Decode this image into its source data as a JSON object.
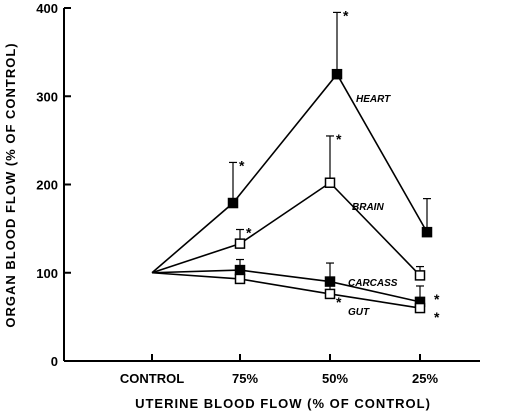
{
  "chart_data": {
    "type": "line",
    "xlabel": "UTERINE BLOOD FLOW (% OF CONTROL)",
    "ylabel": "ORGAN BLOOD FLOW (% OF CONTROL)",
    "categories": [
      "CONTROL",
      "75%",
      "50%",
      "25%"
    ],
    "ylim": [
      0,
      400
    ],
    "yticks": [
      0,
      100,
      200,
      300,
      400
    ],
    "grid": false,
    "legend": "inline labels beside each line",
    "series": [
      {
        "name": "HEART",
        "marker": "filled-square",
        "values": [
          100,
          179,
          325,
          146
        ],
        "errors": [
          null,
          46,
          70,
          38
        ],
        "significant": [
          false,
          true,
          true,
          false
        ]
      },
      {
        "name": "BRAIN",
        "marker": "open-square",
        "values": [
          100,
          133,
          202,
          97
        ],
        "errors": [
          null,
          16,
          53,
          10
        ],
        "significant": [
          false,
          true,
          true,
          false
        ]
      },
      {
        "name": "CARCASS",
        "marker": "filled-square",
        "values": [
          100,
          103,
          90,
          67
        ],
        "errors": [
          null,
          12,
          21,
          18
        ],
        "significant": [
          false,
          false,
          false,
          true
        ]
      },
      {
        "name": "GUT",
        "marker": "open-square",
        "values": [
          100,
          93,
          76,
          60
        ],
        "errors": [
          null,
          8,
          10,
          7
        ],
        "significant": [
          false,
          false,
          true,
          true
        ]
      }
    ],
    "significance_marker": "*"
  }
}
